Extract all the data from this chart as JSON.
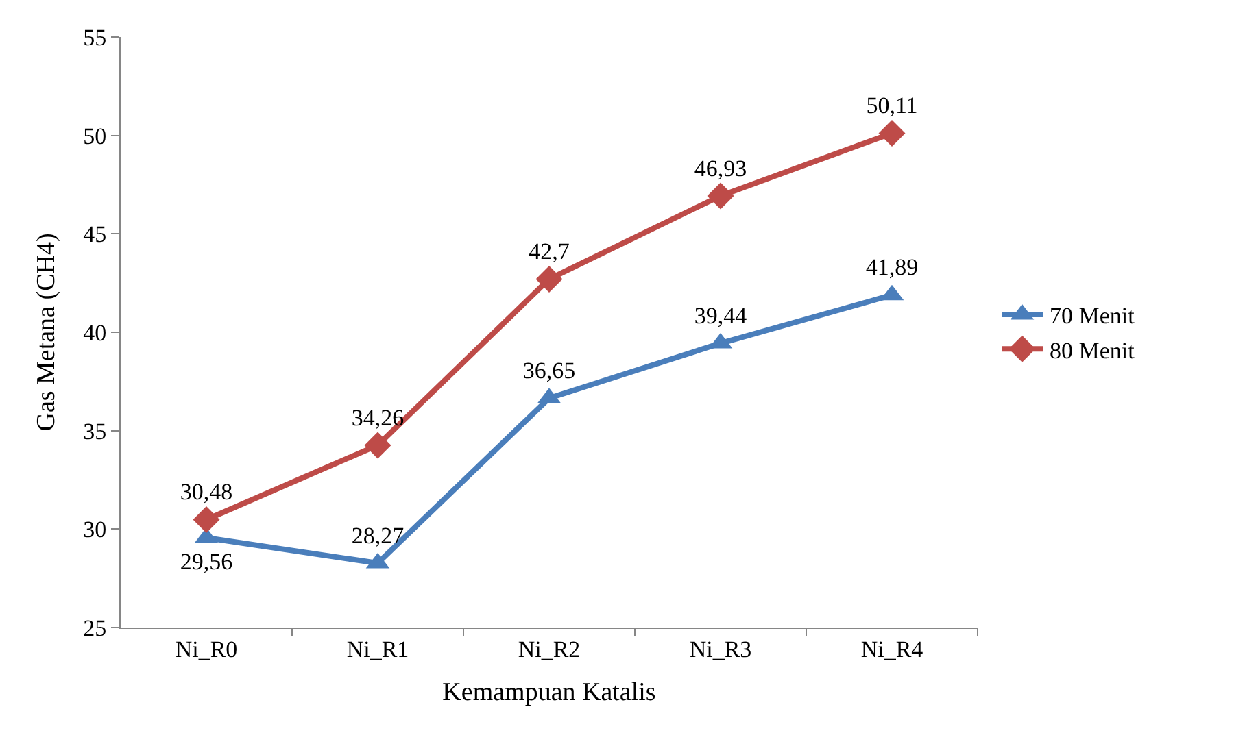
{
  "chart_data": {
    "type": "line",
    "xlabel": "Kemampuan Katalis",
    "ylabel": "Gas Metana (CH4)",
    "categories": [
      "Ni_R0",
      "Ni_R1",
      "Ni_R2",
      "Ni_R3",
      "Ni_R4"
    ],
    "series": [
      {
        "name": "70 Menit",
        "color": "#4a7ebb",
        "marker": "triangle",
        "values": [
          29.56,
          28.27,
          36.65,
          39.44,
          41.89
        ],
        "value_labels": [
          "29,56",
          "28,27",
          "36,65",
          "39,44",
          "41,89"
        ]
      },
      {
        "name": "80 Menit",
        "color": "#be4b48",
        "marker": "diamond",
        "values": [
          30.48,
          34.26,
          42.7,
          46.93,
          50.11
        ],
        "value_labels": [
          "30,48",
          "34,26",
          "42,7",
          "46,93",
          "50,11"
        ]
      }
    ],
    "ylim": [
      25,
      55
    ],
    "yticks": [
      25,
      30,
      35,
      40,
      45,
      50,
      55
    ],
    "legend": "right",
    "line_style": "solid"
  }
}
